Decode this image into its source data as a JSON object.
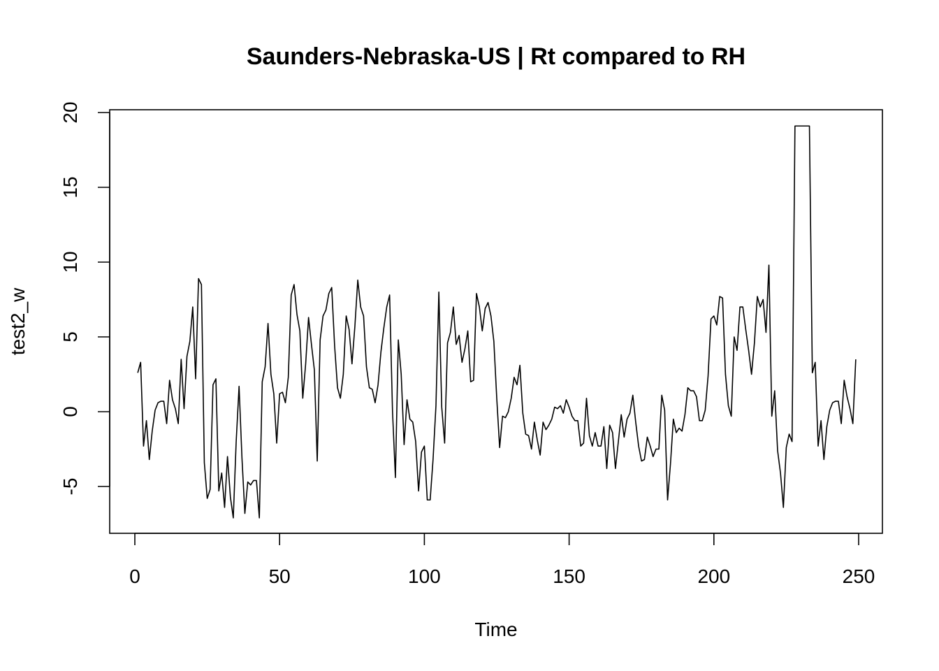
{
  "chart_data": {
    "type": "line",
    "title": "Saunders-Nebraska-US | Rt compared to RH",
    "xlabel": "Time",
    "ylabel": "test2_w",
    "xlim": [
      0,
      250
    ],
    "ylim": [
      -7,
      20
    ],
    "x_ticks": [
      "0",
      "50",
      "100",
      "150",
      "200",
      "250"
    ],
    "y_ticks": [
      "-5",
      "0",
      "5",
      "10",
      "15",
      "20"
    ],
    "x_tick_values": [
      0,
      50,
      100,
      150,
      200,
      250
    ],
    "y_tick_values": [
      -5,
      0,
      5,
      10,
      15,
      20
    ],
    "grid": false,
    "legend": "none",
    "series": [
      {
        "x_start": 1,
        "values": [
          2.6,
          3.3,
          -2.3,
          -0.6,
          -3.2,
          -1.3,
          0.1,
          0.6,
          0.7,
          0.7,
          -0.8,
          2.1,
          0.8,
          0.2,
          -0.8,
          3.5,
          0.2,
          3.7,
          4.7,
          7.0,
          2.2,
          8.9,
          8.5,
          -3.4,
          -5.8,
          -5.2,
          1.8,
          2.2,
          -5.3,
          -4.1,
          -6.4,
          -3.0,
          -5.7,
          -7.1,
          -2.0,
          1.7,
          -3.1,
          -6.8,
          -4.7,
          -4.9,
          -4.6,
          -4.6,
          -7.1,
          2.0,
          3.0,
          5.9,
          2.5,
          1.2,
          -2.1,
          1.2,
          1.3,
          0.6,
          2.3,
          7.8,
          8.5,
          6.5,
          5.4,
          0.9,
          3.2,
          6.3,
          4.5,
          2.8,
          -3.3,
          4.8,
          6.4,
          6.8,
          7.9,
          8.3,
          4.4,
          1.6,
          0.9,
          2.5,
          6.4,
          5.5,
          3.2,
          5.7,
          8.8,
          7.0,
          6.4,
          3.0,
          1.6,
          1.5,
          0.6,
          1.8,
          4.0,
          5.6,
          7.0,
          7.8,
          0.0,
          -4.4,
          4.8,
          2.5,
          -2.2,
          0.8,
          -0.5,
          -0.7,
          -2.0,
          -5.3,
          -2.7,
          -2.3,
          -5.9,
          -5.9,
          -3.2,
          0.4,
          8.0,
          0.3,
          -2.1,
          4.6,
          5.3,
          7.0,
          4.5,
          5.1,
          3.3,
          4.2,
          5.4,
          2.0,
          2.1,
          7.9,
          7.0,
          5.4,
          6.9,
          7.3,
          6.4,
          4.7,
          0.9,
          -2.4,
          -0.3,
          -0.4,
          0.0,
          0.9,
          2.3,
          1.8,
          3.1,
          -0.1,
          -1.5,
          -1.6,
          -2.5,
          -0.7,
          -1.9,
          -2.9,
          -0.7,
          -1.2,
          -0.9,
          -0.5,
          0.3,
          0.2,
          0.4,
          -0.1,
          0.8,
          0.3,
          -0.3,
          -0.6,
          -0.6,
          -2.3,
          -2.1,
          0.9,
          -1.6,
          -2.3,
          -1.4,
          -2.3,
          -2.3,
          -1.0,
          -3.8,
          -0.9,
          -1.4,
          -3.8,
          -2.0,
          -0.2,
          -1.7,
          -0.5,
          -0.1,
          1.1,
          -0.7,
          -2.3,
          -3.3,
          -3.2,
          -1.7,
          -2.3,
          -3.0,
          -2.5,
          -2.5,
          1.1,
          0.1,
          -5.9,
          -3.5,
          -0.5,
          -1.4,
          -1.1,
          -1.3,
          -0.2,
          1.6,
          1.4,
          1.4,
          1.0,
          -0.6,
          -0.6,
          0.1,
          2.4,
          6.2,
          6.4,
          5.8,
          7.7,
          7.6,
          2.5,
          0.4,
          -0.3,
          5.0,
          4.1,
          7.0,
          7.0,
          5.5,
          4.1,
          2.5,
          4.6,
          7.7,
          7.0,
          7.5,
          5.3,
          9.8,
          -0.3,
          1.4,
          -2.6,
          -4.1,
          -6.4,
          -2.4,
          -1.5,
          -2.0,
          19.1,
          19.1,
          19.1,
          19.1,
          19.1,
          19.1,
          2.6,
          3.3,
          -2.3,
          -0.6,
          -3.2,
          -1.0,
          0.1,
          0.6,
          0.7,
          0.7,
          -0.8,
          2.1,
          1.0,
          0.2,
          -0.8,
          3.5
        ]
      }
    ]
  }
}
